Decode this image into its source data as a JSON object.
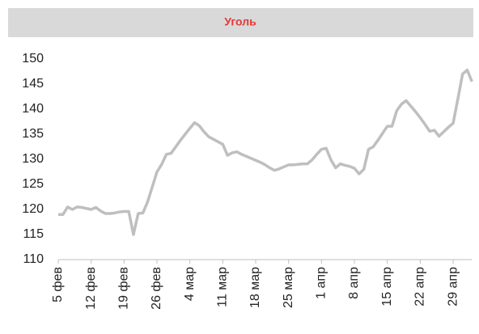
{
  "chart_data": {
    "type": "line",
    "title": "Уголь",
    "categories": [
      "5 фев",
      null,
      null,
      null,
      null,
      null,
      null,
      "12 фев",
      null,
      null,
      null,
      null,
      null,
      null,
      "19 фев",
      null,
      null,
      null,
      null,
      null,
      null,
      "26 фев",
      null,
      null,
      null,
      null,
      null,
      null,
      "4 мар",
      null,
      null,
      null,
      null,
      null,
      null,
      "11 мар",
      null,
      null,
      null,
      null,
      null,
      null,
      "18 мар",
      null,
      null,
      null,
      null,
      null,
      null,
      "25 мар",
      null,
      null,
      null,
      null,
      null,
      null,
      "1 апр",
      null,
      null,
      null,
      null,
      null,
      null,
      "8 апр",
      null,
      null,
      null,
      null,
      null,
      null,
      "15 апр",
      null,
      null,
      null,
      null,
      null,
      null,
      "22 апр",
      null,
      null,
      null,
      null,
      null,
      null,
      "29 апр",
      null,
      null,
      null,
      null
    ],
    "series": [
      {
        "name": "Уголь",
        "color": "#bfbfbf",
        "values": [
          119,
          119,
          120.5,
          120,
          120.5,
          120.4,
          120.2,
          120,
          120.4,
          119.7,
          119.2,
          119.2,
          119.3,
          119.5,
          119.6,
          119.6,
          115,
          119.2,
          119.3,
          121.5,
          124.5,
          127.5,
          129,
          131,
          131.2,
          132.5,
          133.8,
          135,
          136.2,
          137.3,
          136.7,
          135.5,
          134.5,
          134,
          133.5,
          133,
          130.8,
          131.3,
          131.5,
          131,
          130.6,
          130.2,
          129.8,
          129.4,
          128.9,
          128.3,
          127.8,
          128.1,
          128.5,
          128.9,
          128.9,
          129,
          129.1,
          129.1,
          129.9,
          131,
          132,
          132.2,
          129.9,
          128.3,
          129.1,
          128.8,
          128.6,
          128.2,
          127.1,
          128,
          132,
          132.5,
          133.8,
          135.2,
          136.6,
          136.6,
          139.7,
          141,
          141.7,
          140.6,
          139.5,
          138.3,
          137,
          135.6,
          135.8,
          134.6,
          135.5,
          136.4,
          137.2,
          142,
          147,
          147.8,
          145.5
        ]
      }
    ],
    "ylim": [
      110,
      150
    ],
    "yticks": [
      110,
      115,
      120,
      125,
      130,
      135,
      140,
      145,
      150
    ]
  }
}
